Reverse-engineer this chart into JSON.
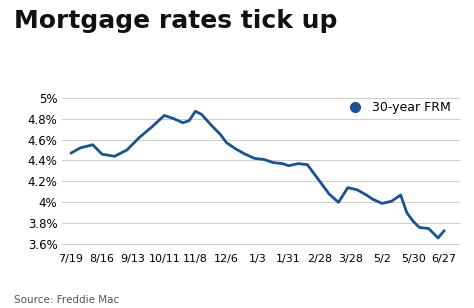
{
  "title": "Mortgage rates tick up",
  "legend_label": "30-year FRM",
  "source_text": "Source: Freddie Mac",
  "x_labels": [
    "7/19",
    "8/16",
    "9/13",
    "10/11",
    "11/8",
    "12/6",
    "1/3",
    "1/31",
    "2/28",
    "3/28",
    "5/2",
    "5/30",
    "6/27"
  ],
  "ylim": [
    3.55,
    5.05
  ],
  "yticks": [
    3.6,
    3.8,
    4.0,
    4.2,
    4.4,
    4.6,
    4.8,
    5.0
  ],
  "line_color": "#1a5296",
  "marker_color": "#1a5296",
  "background_color": "#ffffff",
  "grid_color": "#cccccc",
  "title_fontsize": 18,
  "label_fontsize": 8.5,
  "source_fontsize": 7.5,
  "x_smooth": [
    0,
    0.3,
    0.7,
    1.0,
    1.4,
    1.8,
    2.2,
    2.6,
    3.0,
    3.3,
    3.6,
    3.8,
    4.0,
    4.2,
    4.5,
    4.8,
    5.0,
    5.3,
    5.6,
    5.9,
    6.2,
    6.5,
    6.8,
    7.0,
    7.3,
    7.6,
    8.0,
    8.3,
    8.6,
    8.9,
    9.2,
    9.5,
    9.7,
    10.0,
    10.3,
    10.6,
    10.8,
    11.0,
    11.2,
    11.5,
    11.8,
    12.0
  ],
  "y_smooth": [
    4.47,
    4.52,
    4.55,
    4.46,
    4.44,
    4.5,
    4.62,
    4.72,
    4.83,
    4.8,
    4.76,
    4.78,
    4.87,
    4.84,
    4.74,
    4.65,
    4.57,
    4.51,
    4.46,
    4.42,
    4.41,
    4.38,
    4.37,
    4.35,
    4.37,
    4.36,
    4.2,
    4.08,
    4.0,
    4.14,
    4.12,
    4.07,
    4.03,
    3.99,
    4.01,
    4.07,
    3.9,
    3.82,
    3.76,
    3.75,
    3.66,
    3.73
  ]
}
